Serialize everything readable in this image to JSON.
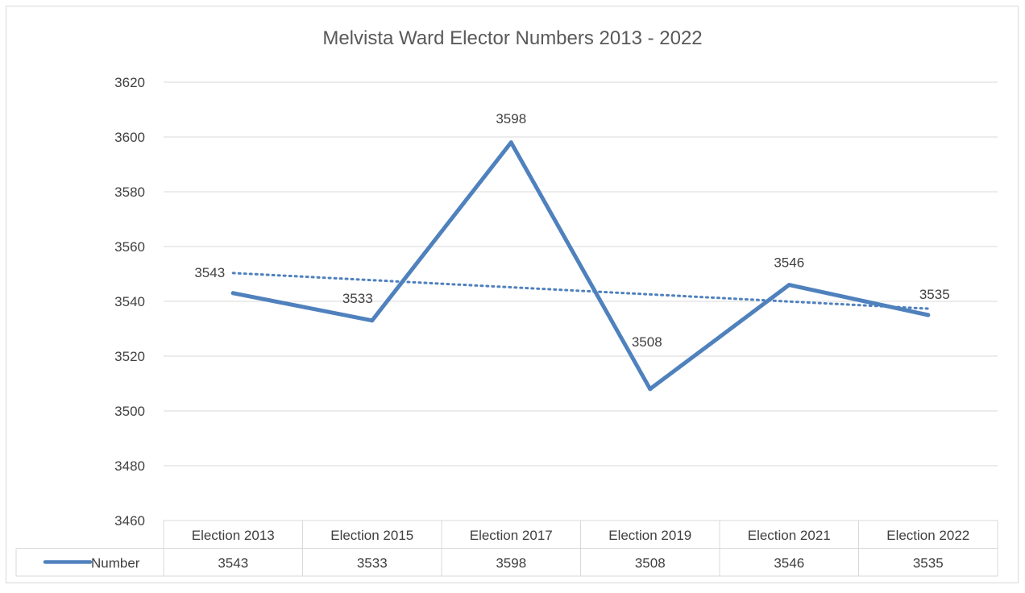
{
  "chart_data": {
    "type": "line",
    "title": "Melvista Ward Elector Numbers 2013 - 2022",
    "categories": [
      "Election 2013",
      "Election 2015",
      "Election 2017",
      "Election 2019",
      "Election 2021",
      "Election 2022"
    ],
    "series": [
      {
        "name": "Number",
        "values": [
          3543,
          3533,
          3598,
          3508,
          3546,
          3535
        ],
        "color": "#4f81bd"
      }
    ],
    "trendline": {
      "type": "linear",
      "style": "dotted",
      "color": "#4f81bd"
    },
    "ylim": [
      3460,
      3620
    ],
    "yticks": [
      "3460",
      "3480",
      "3500",
      "3520",
      "3540",
      "3560",
      "3580",
      "3600",
      "3620"
    ],
    "grid": true,
    "data_table": true
  }
}
